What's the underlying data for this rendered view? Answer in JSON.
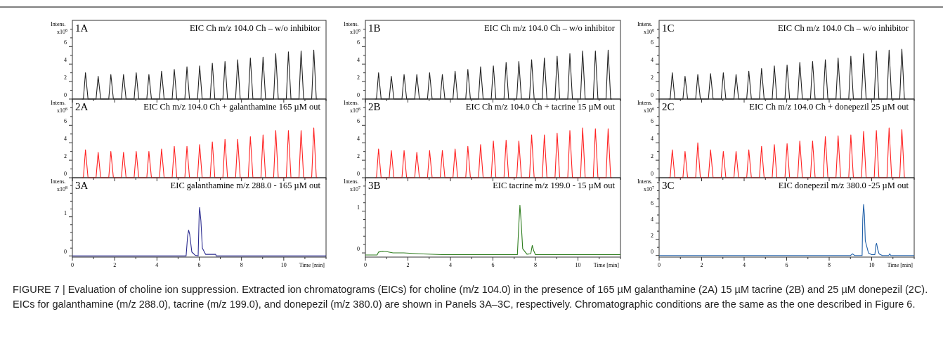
{
  "chart_data": [
    {
      "type": "line",
      "title": "EIC Ch m/z 104.0 Ch – w/o inhibitor",
      "ylabel": "Intens.\nx10$^{6}$",
      "annotations": [
        "1A"
      ],
      "tick_labels": "y",
      "xlim": [
        0,
        12
      ],
      "xticks": [
        0,
        {
          "value": 1,
          "label": null
        },
        2,
        {
          "value": 3,
          "label": null
        },
        4,
        {
          "value": 5,
          "label": null
        },
        6,
        {
          "value": 7,
          "label": null
        },
        8,
        {
          "value": 9,
          "label": null
        },
        10,
        {
          "value": 11,
          "label": null
        },
        {
          "value": 12,
          "label": null
        }
      ],
      "ylim": [
        0,
        9
      ],
      "yticks": [
        0,
        {
          "value": 1,
          "label": null
        },
        2,
        {
          "value": 3,
          "label": null
        },
        4,
        {
          "value": 5,
          "label": null
        },
        6,
        {
          "value": 7,
          "label": null
        },
        {
          "value": 8,
          "label": null
        }
      ],
      "x": [
        0.45,
        0.52,
        0.62,
        0.74,
        1.12,
        1.22,
        1.34,
        1.72,
        1.82,
        1.94,
        2.32,
        2.42,
        2.54,
        2.92,
        3.02,
        3.14,
        3.52,
        3.62,
        3.74,
        4.12,
        4.22,
        4.34,
        4.72,
        4.82,
        4.94,
        5.32,
        5.42,
        5.54,
        5.92,
        6.02,
        6.14,
        6.52,
        6.62,
        6.74,
        7.12,
        7.22,
        7.34,
        7.72,
        7.82,
        7.94,
        8.32,
        8.42,
        8.54,
        8.92,
        9.02,
        9.14,
        9.52,
        9.62,
        9.74,
        10.12,
        10.22,
        10.34,
        10.72,
        10.82,
        10.94,
        11.32,
        11.42,
        11.54,
        11.6
      ],
      "series": [
        {
          "color": "#222222",
          "values": [
            0,
            0,
            3.0,
            0,
            0,
            2.6,
            0,
            0,
            2.8,
            0,
            0,
            2.8,
            0,
            0,
            3.0,
            0,
            0,
            2.8,
            0,
            0,
            3.2,
            0,
            0,
            3.4,
            0,
            0,
            3.7,
            0,
            0,
            3.8,
            0,
            0,
            4.1,
            0,
            0,
            4.3,
            0,
            0,
            4.5,
            0,
            0,
            4.7,
            0,
            0,
            4.8,
            0,
            0,
            5.2,
            0,
            0,
            5.4,
            0,
            0,
            5.5,
            0,
            0,
            5.6,
            0,
            0
          ]
        }
      ]
    },
    {
      "type": "line",
      "title": "EIC Ch m/z 104.0 Ch – w/o inhibitor",
      "ylabel": "Intens.\nx10$^{6}$",
      "annotations": [
        "1B"
      ],
      "tick_labels": "y",
      "xlim": [
        0,
        12
      ],
      "xticks": [
        0,
        {
          "value": 1,
          "label": null
        },
        2,
        {
          "value": 3,
          "label": null
        },
        4,
        {
          "value": 5,
          "label": null
        },
        6,
        {
          "value": 7,
          "label": null
        },
        8,
        {
          "value": 9,
          "label": null
        },
        10,
        {
          "value": 11,
          "label": null
        },
        {
          "value": 12,
          "label": null
        }
      ],
      "ylim": [
        0,
        9
      ],
      "yticks": [
        0,
        {
          "value": 1,
          "label": null
        },
        2,
        {
          "value": 3,
          "label": null
        },
        4,
        {
          "value": 5,
          "label": null
        },
        6,
        {
          "value": 7,
          "label": null
        },
        {
          "value": 8,
          "label": null
        }
      ],
      "x": [
        0.45,
        0.52,
        0.62,
        0.74,
        1.12,
        1.22,
        1.34,
        1.72,
        1.82,
        1.94,
        2.32,
        2.42,
        2.54,
        2.92,
        3.02,
        3.14,
        3.52,
        3.62,
        3.74,
        4.12,
        4.22,
        4.34,
        4.72,
        4.82,
        4.94,
        5.32,
        5.42,
        5.54,
        5.92,
        6.02,
        6.14,
        6.52,
        6.62,
        6.74,
        7.12,
        7.22,
        7.34,
        7.72,
        7.82,
        7.94,
        8.32,
        8.42,
        8.54,
        8.92,
        9.02,
        9.14,
        9.52,
        9.62,
        9.74,
        10.12,
        10.22,
        10.34,
        10.72,
        10.82,
        10.94,
        11.32,
        11.42,
        11.54,
        11.6
      ],
      "series": [
        {
          "color": "#222222",
          "values": [
            0,
            0,
            3.0,
            0,
            0,
            2.6,
            0,
            0,
            2.8,
            0,
            0,
            2.8,
            0,
            0,
            3.0,
            0,
            0,
            2.8,
            0,
            0,
            3.2,
            0,
            0,
            3.4,
            0,
            0,
            3.7,
            0,
            0,
            3.8,
            0,
            0,
            4.2,
            0,
            0,
            4.3,
            0,
            0,
            4.5,
            0,
            0,
            4.7,
            0,
            0,
            4.9,
            0,
            0,
            5.2,
            0,
            0,
            5.5,
            0,
            0,
            5.5,
            0,
            0,
            5.6,
            0,
            0
          ]
        }
      ]
    },
    {
      "type": "line",
      "title": "EIC Ch m/z 104.0 Ch – w/o inhibitor",
      "ylabel": "Intens.\nx10$^{6}$",
      "annotations": [
        "1C"
      ],
      "tick_labels": "y",
      "xlim": [
        0,
        12
      ],
      "xticks": [
        0,
        {
          "value": 1,
          "label": null
        },
        2,
        {
          "value": 3,
          "label": null
        },
        4,
        {
          "value": 5,
          "label": null
        },
        6,
        {
          "value": 7,
          "label": null
        },
        8,
        {
          "value": 9,
          "label": null
        },
        10,
        {
          "value": 11,
          "label": null
        },
        {
          "value": 12,
          "label": null
        }
      ],
      "ylim": [
        0,
        9
      ],
      "yticks": [
        0,
        {
          "value": 1,
          "label": null
        },
        2,
        {
          "value": 3,
          "label": null
        },
        4,
        {
          "value": 5,
          "label": null
        },
        6,
        {
          "value": 7,
          "label": null
        },
        {
          "value": 8,
          "label": null
        }
      ],
      "x": [
        0.45,
        0.52,
        0.62,
        0.74,
        1.12,
        1.22,
        1.34,
        1.72,
        1.82,
        1.94,
        2.32,
        2.42,
        2.54,
        2.92,
        3.02,
        3.14,
        3.52,
        3.62,
        3.74,
        4.12,
        4.22,
        4.34,
        4.72,
        4.82,
        4.94,
        5.32,
        5.42,
        5.54,
        5.92,
        6.02,
        6.14,
        6.52,
        6.62,
        6.74,
        7.12,
        7.22,
        7.34,
        7.72,
        7.82,
        7.94,
        8.32,
        8.42,
        8.54,
        8.92,
        9.02,
        9.14,
        9.52,
        9.62,
        9.74,
        10.12,
        10.22,
        10.34,
        10.72,
        10.82,
        10.94,
        11.32,
        11.42,
        11.54,
        11.6
      ],
      "series": [
        {
          "color": "#222222",
          "values": [
            0,
            0,
            3.0,
            0,
            0,
            2.6,
            0,
            0,
            2.8,
            0,
            0,
            2.9,
            0,
            0,
            3.0,
            0,
            0,
            2.8,
            0,
            0,
            3.2,
            0,
            0,
            3.5,
            0,
            0,
            3.8,
            0,
            0,
            3.9,
            0,
            0,
            4.2,
            0,
            0,
            4.3,
            0,
            0,
            4.5,
            0,
            0,
            4.7,
            0,
            0,
            4.9,
            0,
            0,
            5.2,
            0,
            0,
            5.5,
            0,
            0,
            5.6,
            0,
            0,
            5.7,
            0,
            0
          ]
        }
      ]
    },
    {
      "type": "line",
      "title": "EIC Ch  m/z 104.0 Ch + galanthamine 165  µM out",
      "ylabel": "Intens.\nx10$^{6}$",
      "annotations": [
        "2A"
      ],
      "tick_labels": "y",
      "xlim": [
        0,
        12
      ],
      "xticks": [
        0,
        {
          "value": 1,
          "label": null
        },
        2,
        {
          "value": 3,
          "label": null
        },
        4,
        {
          "value": 5,
          "label": null
        },
        6,
        {
          "value": 7,
          "label": null
        },
        8,
        {
          "value": 9,
          "label": null
        },
        10,
        {
          "value": 11,
          "label": null
        },
        {
          "value": 12,
          "label": null
        }
      ],
      "ylim": [
        0,
        9
      ],
      "yticks": [
        0,
        {
          "value": 1,
          "label": null
        },
        2,
        {
          "value": 3,
          "label": null
        },
        4,
        {
          "value": 5,
          "label": null
        },
        6,
        {
          "value": 7,
          "label": null
        },
        {
          "value": 8,
          "label": null
        }
      ],
      "x": [
        0.45,
        0.52,
        0.62,
        0.74,
        1.12,
        1.22,
        1.34,
        1.72,
        1.82,
        1.94,
        2.32,
        2.42,
        2.54,
        2.92,
        3.02,
        3.14,
        3.52,
        3.62,
        3.74,
        4.12,
        4.22,
        4.34,
        4.72,
        4.82,
        4.94,
        5.32,
        5.42,
        5.54,
        5.92,
        6.02,
        6.14,
        6.52,
        6.62,
        6.74,
        7.12,
        7.22,
        7.34,
        7.72,
        7.82,
        7.94,
        8.32,
        8.42,
        8.54,
        8.92,
        9.02,
        9.14,
        9.52,
        9.62,
        9.74,
        10.12,
        10.22,
        10.34,
        10.72,
        10.82,
        10.94,
        11.32,
        11.42,
        11.54,
        11.6
      ],
      "series": [
        {
          "color": "#ff2222",
          "values": [
            0,
            0,
            3.2,
            0,
            0,
            2.9,
            0,
            0,
            3.0,
            0,
            0,
            2.9,
            0,
            0,
            3.0,
            0,
            0,
            3.0,
            0,
            0,
            3.3,
            0,
            0,
            3.6,
            0,
            0,
            3.6,
            0,
            0,
            3.8,
            0,
            0,
            4.1,
            0,
            0,
            4.4,
            0,
            0,
            4.4,
            0,
            0,
            4.7,
            0,
            0,
            4.9,
            0,
            0,
            5.4,
            0,
            0,
            5.4,
            0,
            0,
            5.4,
            0,
            0,
            5.7,
            0,
            0
          ]
        }
      ]
    },
    {
      "type": "line",
      "title": "EIC Ch m/z 104.0 Ch + tacrine 15 µM out",
      "ylabel": "Intens.\nx10$^{6}$",
      "annotations": [
        "2B"
      ],
      "tick_labels": "y",
      "xlim": [
        0,
        12
      ],
      "xticks": [
        0,
        {
          "value": 1,
          "label": null
        },
        2,
        {
          "value": 3,
          "label": null
        },
        4,
        {
          "value": 5,
          "label": null
        },
        6,
        {
          "value": 7,
          "label": null
        },
        8,
        {
          "value": 9,
          "label": null
        },
        10,
        {
          "value": 11,
          "label": null
        },
        {
          "value": 12,
          "label": null
        }
      ],
      "ylim": [
        0,
        9
      ],
      "yticks": [
        0,
        {
          "value": 1,
          "label": null
        },
        2,
        {
          "value": 3,
          "label": null
        },
        4,
        {
          "value": 5,
          "label": null
        },
        6,
        {
          "value": 7,
          "label": null
        },
        {
          "value": 8,
          "label": null
        }
      ],
      "x": [
        0.45,
        0.52,
        0.62,
        0.74,
        1.12,
        1.22,
        1.34,
        1.72,
        1.82,
        1.94,
        2.32,
        2.42,
        2.54,
        2.92,
        3.02,
        3.14,
        3.52,
        3.62,
        3.74,
        4.12,
        4.22,
        4.34,
        4.72,
        4.82,
        4.94,
        5.32,
        5.42,
        5.54,
        5.92,
        6.02,
        6.14,
        6.52,
        6.62,
        6.74,
        7.12,
        7.22,
        7.34,
        7.72,
        7.82,
        7.94,
        8.32,
        8.42,
        8.54,
        8.92,
        9.02,
        9.14,
        9.52,
        9.62,
        9.74,
        10.12,
        10.22,
        10.34,
        10.72,
        10.82,
        10.94,
        11.32,
        11.42,
        11.54,
        11.6
      ],
      "series": [
        {
          "color": "#ff2222",
          "values": [
            0,
            0,
            3.3,
            0,
            0,
            3.1,
            0,
            0,
            3.1,
            0,
            0,
            2.9,
            0,
            0,
            3.1,
            0,
            0,
            3.1,
            0,
            0,
            3.3,
            0,
            0,
            3.6,
            0,
            0,
            3.8,
            0,
            0,
            4.2,
            0,
            0,
            4.3,
            0,
            0,
            4.2,
            0,
            0,
            4.9,
            0,
            0,
            4.9,
            0,
            0,
            5.1,
            0,
            0,
            5.4,
            0,
            0,
            5.7,
            0,
            0,
            5.6,
            0,
            0,
            5.6,
            0,
            0
          ]
        }
      ]
    },
    {
      "type": "line",
      "title": "EIC Ch m/z 104.0 Ch + donepezil 25 µM out",
      "ylabel": "Intens.\nx10$^{6}$",
      "annotations": [
        "2C"
      ],
      "tick_labels": "y",
      "xlim": [
        0,
        12
      ],
      "xticks": [
        0,
        {
          "value": 1,
          "label": null
        },
        2,
        {
          "value": 3,
          "label": null
        },
        4,
        {
          "value": 5,
          "label": null
        },
        6,
        {
          "value": 7,
          "label": null
        },
        8,
        {
          "value": 9,
          "label": null
        },
        10,
        {
          "value": 11,
          "label": null
        },
        {
          "value": 12,
          "label": null
        }
      ],
      "ylim": [
        0,
        9
      ],
      "yticks": [
        0,
        {
          "value": 1,
          "label": null
        },
        2,
        {
          "value": 3,
          "label": null
        },
        4,
        {
          "value": 5,
          "label": null
        },
        6,
        {
          "value": 7,
          "label": null
        },
        {
          "value": 8,
          "label": null
        }
      ],
      "x": [
        0.45,
        0.52,
        0.62,
        0.74,
        1.12,
        1.22,
        1.34,
        1.72,
        1.82,
        1.94,
        2.32,
        2.42,
        2.54,
        2.92,
        3.02,
        3.14,
        3.52,
        3.62,
        3.74,
        4.12,
        4.22,
        4.34,
        4.72,
        4.82,
        4.94,
        5.32,
        5.42,
        5.54,
        5.92,
        6.02,
        6.14,
        6.52,
        6.62,
        6.74,
        7.12,
        7.22,
        7.34,
        7.72,
        7.82,
        7.94,
        8.32,
        8.42,
        8.54,
        8.92,
        9.02,
        9.14,
        9.52,
        9.62,
        9.74,
        10.12,
        10.22,
        10.34,
        10.72,
        10.82,
        10.94,
        11.32,
        11.42,
        11.54,
        11.6
      ],
      "series": [
        {
          "color": "#ff2222",
          "values": [
            0,
            0,
            3.2,
            0,
            0,
            3.0,
            0,
            0,
            4.0,
            0,
            0,
            3.2,
            0,
            0,
            3.0,
            0,
            0,
            3.0,
            0,
            0,
            3.2,
            0,
            0,
            3.6,
            0,
            0,
            3.8,
            0,
            0,
            3.9,
            0,
            0,
            4.2,
            0,
            0,
            4.2,
            0,
            0,
            4.7,
            0,
            0,
            4.8,
            0,
            0,
            4.9,
            0,
            0,
            5.3,
            0,
            0,
            5.4,
            0,
            0,
            5.7,
            0,
            0,
            5.5,
            0,
            0
          ]
        }
      ]
    },
    {
      "type": "line",
      "title": "EIC galanthamine m/z 288.0 - 165 µM out",
      "ylabel": "Intens.\nx10$^{8}$",
      "xlabel": "Time [min]",
      "annotations": [
        "3A"
      ],
      "xlim": [
        0,
        12
      ],
      "xticks": [
        0,
        {
          "value": 1,
          "label": null
        },
        2,
        {
          "value": 3,
          "label": null
        },
        4,
        {
          "value": 5,
          "label": null
        },
        6,
        {
          "value": 7,
          "label": null
        },
        8,
        {
          "value": 9,
          "label": null
        },
        10,
        {
          "value": 11,
          "label": null
        },
        {
          "value": 12,
          "label": null
        }
      ],
      "ylim": [
        -0.03,
        2
      ],
      "yticks": [
        0,
        {
          "value": 0.2,
          "label": null
        },
        {
          "value": 0.4,
          "label": null
        },
        {
          "value": 0.6,
          "label": null
        },
        {
          "value": 0.8,
          "label": null
        },
        1,
        {
          "value": 1.2,
          "label": null
        },
        {
          "value": 1.4,
          "label": null
        },
        {
          "value": 1.6,
          "label": null
        },
        {
          "value": 1.8,
          "label": null
        }
      ],
      "x": [
        0,
        5.38,
        5.45,
        5.5,
        5.55,
        5.65,
        5.8,
        5.95,
        6.0,
        6.02,
        6.08,
        6.15,
        6.3,
        6.78,
        6.8,
        12
      ],
      "series": [
        {
          "color": "#2b2b8f",
          "values": [
            0,
            0,
            0.5,
            0.66,
            0.55,
            0.1,
            0.02,
            0,
            1.1,
            1.24,
            0.9,
            0.2,
            0.04,
            0.04,
            0,
            0
          ]
        }
      ]
    },
    {
      "type": "line",
      "title": "EIC tacrine m/z 199.0 - 15 µM out",
      "ylabel": "Intens.\nx10$^{7}$",
      "xlabel": "Time [min]",
      "annotations": [
        "3B"
      ],
      "xlim": [
        0,
        12
      ],
      "xticks": [
        0,
        {
          "value": 1,
          "label": null
        },
        2,
        {
          "value": 3,
          "label": null
        },
        4,
        {
          "value": 5,
          "label": null
        },
        6,
        {
          "value": 7,
          "label": null
        },
        8,
        {
          "value": 9,
          "label": null
        },
        10,
        {
          "value": 11,
          "label": null
        },
        {
          "value": 12,
          "label": null
        }
      ],
      "ylim": [
        -0.1,
        1.8
      ],
      "yticks": [
        0,
        {
          "value": 0.2,
          "label": null
        },
        {
          "value": 0.4,
          "label": null
        },
        {
          "value": 0.6,
          "label": null
        },
        {
          "value": 0.8,
          "label": null
        },
        1,
        {
          "value": 1.2,
          "label": null
        },
        {
          "value": 1.4,
          "label": null
        },
        {
          "value": 1.6,
          "label": null
        }
      ],
      "x": [
        0,
        0.55,
        0.62,
        0.8,
        1.0,
        1.3,
        1.8,
        2.5,
        3.6,
        7.15,
        7.22,
        7.27,
        7.32,
        7.4,
        7.6,
        7.78,
        7.85,
        7.92,
        8.0,
        12
      ],
      "series": [
        {
          "color": "#2e7d1e",
          "values": [
            -0.05,
            -0.05,
            0.02,
            0.04,
            0.03,
            0.0,
            0.0,
            -0.02,
            -0.04,
            -0.04,
            0.7,
            1.14,
            0.8,
            0.1,
            -0.03,
            -0.02,
            0.18,
            0.05,
            -0.04,
            -0.04
          ]
        }
      ]
    },
    {
      "type": "line",
      "title": "EIC donepezil m/z 380.0 -25  µM out",
      "ylabel": "Intens.\nx10$^{7}$",
      "xlabel": "Time [min]",
      "annotations": [
        "3C",
        "FIGURE 7 | Evaluation of choline ion suppression. Extracted ion chromatograms (EICs) for choline (m/z 104.0) in the presence of 165 µM galanthamine (2A) 15 µM tacrine (2B) and 25 µM donepezil (2C). EICs for galanthamine (m/z 288.0), tacrine (m/z 199.0), and donepezil (m/z 380.0) are shown in Panels 3A–3C, respectively. Chromatographic conditions are the same as the one described in Figure 6."
      ],
      "xlim": [
        0,
        12
      ],
      "xticks": [
        0,
        {
          "value": 1,
          "label": null
        },
        2,
        {
          "value": 3,
          "label": null
        },
        4,
        {
          "value": 5,
          "label": null
        },
        6,
        {
          "value": 7,
          "label": null
        },
        8,
        {
          "value": 9,
          "label": null
        },
        10,
        {
          "value": 11,
          "label": null
        },
        {
          "value": 12,
          "label": null
        }
      ],
      "ylim": [
        -0.2,
        9.6
      ],
      "yticks": [
        0,
        {
          "value": 1,
          "label": null
        },
        2,
        {
          "value": 3,
          "label": null
        },
        4,
        {
          "value": 5,
          "label": null
        },
        6,
        {
          "value": 7,
          "label": null
        },
        {
          "value": 8,
          "label": null
        },
        {
          "value": 9,
          "label": null
        }
      ],
      "x": [
        0,
        9.0,
        9.1,
        9.2,
        9.55,
        9.58,
        9.62,
        9.66,
        9.7,
        9.78,
        9.85,
        10.0,
        10.15,
        10.2,
        10.23,
        10.28,
        10.35,
        10.5,
        10.8,
        10.85,
        10.9,
        12
      ],
      "series": [
        {
          "color": "#1f5fa8",
          "values": [
            0,
            0,
            0.2,
            0,
            0,
            4.5,
            6.3,
            5,
            1.8,
            1.0,
            0.3,
            0.1,
            0.1,
            1.3,
            1.5,
            0.8,
            0.2,
            0,
            0,
            0.2,
            0,
            0
          ]
        }
      ]
    }
  ]
}
